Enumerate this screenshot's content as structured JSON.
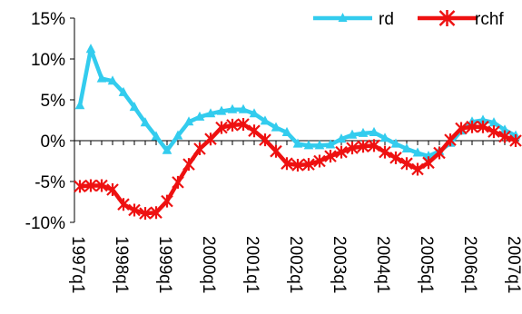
{
  "chart_data": {
    "type": "line",
    "title": "",
    "xlabel": "",
    "ylabel": "",
    "ylim": [
      -10,
      15
    ],
    "yticks": [
      15,
      10,
      5,
      0,
      -5,
      -10
    ],
    "ytick_labels": [
      "15%",
      "10%",
      "5%",
      "0%",
      "-5%",
      "-10%"
    ],
    "x": [
      "1997q1",
      "1997q2",
      "1997q3",
      "1997q4",
      "1998q1",
      "1998q2",
      "1998q3",
      "1998q4",
      "1999q1",
      "1999q2",
      "1999q3",
      "1999q4",
      "2000q1",
      "2000q2",
      "2000q3",
      "2000q4",
      "2001q1",
      "2001q2",
      "2001q3",
      "2001q4",
      "2002q1",
      "2002q2",
      "2002q3",
      "2002q4",
      "2003q1",
      "2003q2",
      "2003q3",
      "2003q4",
      "2004q1",
      "2004q2",
      "2004q3",
      "2004q4",
      "2005q1",
      "2005q2",
      "2005q3",
      "2005q4",
      "2006q1",
      "2006q2",
      "2006q3",
      "2006q4",
      "2007q1"
    ],
    "xtick_labels": [
      "1997q1",
      "1998q1",
      "1999q1",
      "2000q1",
      "2001q1",
      "2002q1",
      "2003q1",
      "2004q1",
      "2005q1",
      "2006q1",
      "2007q1"
    ],
    "grid": false,
    "legend_position": "top-right",
    "series": [
      {
        "name": "rd",
        "color": "#33ccee",
        "marker": "triangle",
        "values": [
          4.3,
          11.2,
          7.6,
          7.3,
          5.9,
          4.1,
          2.2,
          0.5,
          -1.2,
          0.6,
          2.3,
          2.9,
          3.3,
          3.6,
          3.8,
          3.8,
          3.3,
          2.4,
          1.6,
          1.0,
          -0.4,
          -0.6,
          -0.6,
          -0.5,
          0.2,
          0.7,
          0.9,
          1.0,
          0.3,
          -0.4,
          -1.0,
          -1.5,
          -1.9,
          -1.3,
          -0.3,
          1.2,
          2.3,
          2.5,
          2.2,
          1.3,
          0.6
        ]
      },
      {
        "name": "rchf",
        "color": "#ee1111",
        "marker": "asterisk",
        "values": [
          -5.6,
          -5.5,
          -5.5,
          -6.0,
          -7.8,
          -8.5,
          -8.9,
          -8.8,
          -7.4,
          -5.1,
          -2.9,
          -1.0,
          0.2,
          1.6,
          1.9,
          2.0,
          1.2,
          0.1,
          -1.3,
          -2.8,
          -3.0,
          -2.9,
          -2.5,
          -1.9,
          -1.4,
          -0.9,
          -0.7,
          -0.6,
          -1.4,
          -2.1,
          -2.8,
          -3.5,
          -2.7,
          -1.5,
          0.1,
          1.5,
          1.7,
          1.7,
          1.1,
          0.5,
          0.0
        ]
      }
    ]
  }
}
